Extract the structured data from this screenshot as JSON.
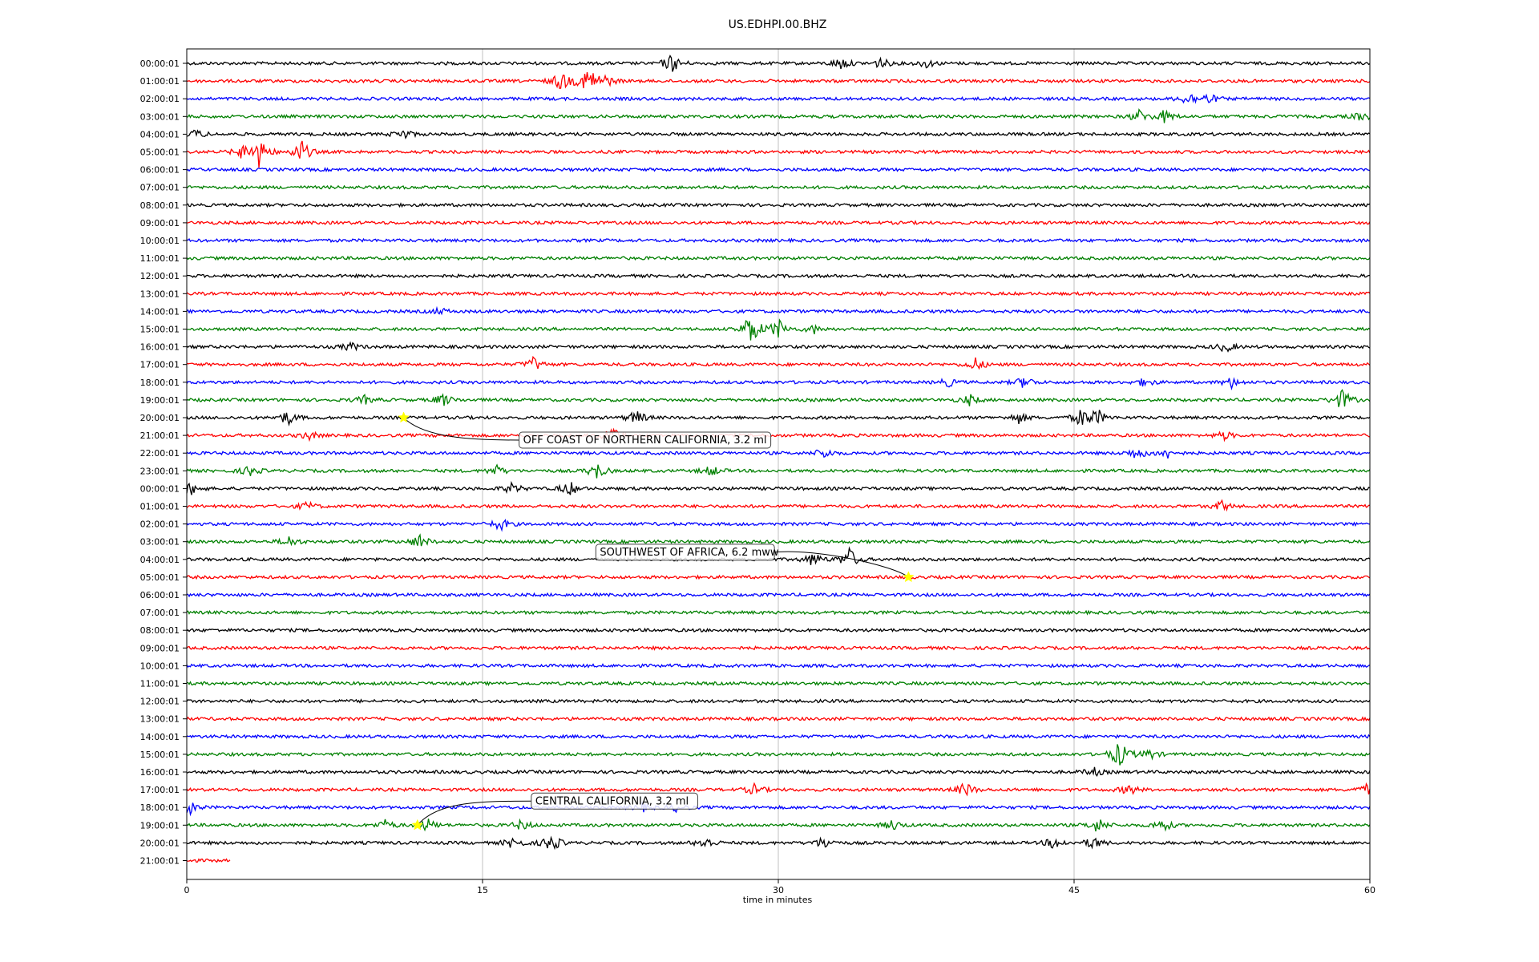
{
  "chart_data": {
    "type": "line",
    "title": "US.EDHPI.00.BHZ",
    "xlabel": "time in minutes",
    "ylabel": "",
    "xlim": [
      0,
      60
    ],
    "x_ticks": [
      "0",
      "15",
      "30",
      "45",
      "60"
    ],
    "grid": "vertical lines at 15, 30 and 45 minutes",
    "trace_colors": [
      "#000000",
      "#ff0000",
      "#0000ff",
      "#008000"
    ],
    "event_marker_color": "#ffff00",
    "row_labels": [
      "00:00:01",
      "01:00:01",
      "02:00:01",
      "03:00:01",
      "04:00:01",
      "05:00:01",
      "06:00:01",
      "07:00:01",
      "08:00:01",
      "09:00:01",
      "10:00:01",
      "11:00:01",
      "12:00:01",
      "13:00:01",
      "14:00:01",
      "15:00:01",
      "16:00:01",
      "17:00:01",
      "18:00:01",
      "19:00:01",
      "20:00:01",
      "21:00:01",
      "22:00:01",
      "23:00:01",
      "00:00:01",
      "01:00:01",
      "02:00:01",
      "03:00:01",
      "04:00:01",
      "05:00:01",
      "06:00:01",
      "07:00:01",
      "08:00:01",
      "09:00:01",
      "10:00:01",
      "11:00:01",
      "12:00:01",
      "13:00:01",
      "14:00:01",
      "15:00:01",
      "16:00:01",
      "17:00:01",
      "18:00:01",
      "19:00:01",
      "20:00:01",
      "21:00:01"
    ],
    "last_row_end_minute": 2.2,
    "bursts": [
      {
        "row": 0,
        "minute": 24.6,
        "amp": 0.9
      },
      {
        "row": 0,
        "minute": 33.2,
        "amp": 0.6
      },
      {
        "row": 0,
        "minute": 35.2,
        "amp": 0.5
      },
      {
        "row": 0,
        "minute": 37.5,
        "amp": 0.4
      },
      {
        "row": 1,
        "minute": 19.0,
        "amp": 1.0
      },
      {
        "row": 1,
        "minute": 20.4,
        "amp": 1.5
      },
      {
        "row": 1,
        "minute": 21.3,
        "amp": 0.5
      },
      {
        "row": 2,
        "minute": 50.8,
        "amp": 0.6
      },
      {
        "row": 2,
        "minute": 51.8,
        "amp": 0.5
      },
      {
        "row": 3,
        "minute": 48.3,
        "amp": 0.6
      },
      {
        "row": 3,
        "minute": 49.6,
        "amp": 0.6
      },
      {
        "row": 3,
        "minute": 59.6,
        "amp": 0.4
      },
      {
        "row": 4,
        "minute": 0.5,
        "amp": 0.4
      },
      {
        "row": 4,
        "minute": 11.0,
        "amp": 0.5
      },
      {
        "row": 5,
        "minute": 3.7,
        "amp": 1.5
      },
      {
        "row": 5,
        "minute": 2.8,
        "amp": 0.6
      },
      {
        "row": 5,
        "minute": 5.8,
        "amp": 1.2
      },
      {
        "row": 14,
        "minute": 12.8,
        "amp": 0.3
      },
      {
        "row": 15,
        "minute": 28.6,
        "amp": 1.6
      },
      {
        "row": 15,
        "minute": 30.0,
        "amp": 1.0
      },
      {
        "row": 15,
        "minute": 31.8,
        "amp": 0.4
      },
      {
        "row": 16,
        "minute": 8.3,
        "amp": 0.4
      },
      {
        "row": 16,
        "minute": 52.7,
        "amp": 0.5
      },
      {
        "row": 17,
        "minute": 17.6,
        "amp": 0.7
      },
      {
        "row": 17,
        "minute": 40.0,
        "amp": 0.6
      },
      {
        "row": 18,
        "minute": 38.6,
        "amp": 0.4
      },
      {
        "row": 18,
        "minute": 42.5,
        "amp": 0.6
      },
      {
        "row": 18,
        "minute": 48.6,
        "amp": 0.4
      },
      {
        "row": 18,
        "minute": 53.0,
        "amp": 0.5
      },
      {
        "row": 19,
        "minute": 9.0,
        "amp": 0.4
      },
      {
        "row": 19,
        "minute": 13.0,
        "amp": 0.6
      },
      {
        "row": 19,
        "minute": 39.7,
        "amp": 0.5
      },
      {
        "row": 19,
        "minute": 58.6,
        "amp": 1.0
      },
      {
        "row": 20,
        "minute": 5.1,
        "amp": 0.7
      },
      {
        "row": 20,
        "minute": 22.8,
        "amp": 0.7
      },
      {
        "row": 20,
        "minute": 42.2,
        "amp": 0.5
      },
      {
        "row": 20,
        "minute": 45.4,
        "amp": 0.9
      },
      {
        "row": 20,
        "minute": 46.2,
        "amp": 0.7
      },
      {
        "row": 21,
        "minute": 6.2,
        "amp": 0.4
      },
      {
        "row": 21,
        "minute": 21.5,
        "amp": 0.9
      },
      {
        "row": 21,
        "minute": 52.6,
        "amp": 0.4
      },
      {
        "row": 22,
        "minute": 32.3,
        "amp": 0.5
      },
      {
        "row": 22,
        "minute": 48.2,
        "amp": 0.6
      },
      {
        "row": 22,
        "minute": 49.7,
        "amp": 0.5
      },
      {
        "row": 23,
        "minute": 3.2,
        "amp": 0.5
      },
      {
        "row": 23,
        "minute": 15.7,
        "amp": 0.5
      },
      {
        "row": 23,
        "minute": 20.8,
        "amp": 0.8
      },
      {
        "row": 23,
        "minute": 26.6,
        "amp": 0.5
      },
      {
        "row": 24,
        "minute": 0.2,
        "amp": 0.6
      },
      {
        "row": 24,
        "minute": 16.5,
        "amp": 0.5
      },
      {
        "row": 24,
        "minute": 19.4,
        "amp": 0.7
      },
      {
        "row": 25,
        "minute": 6.1,
        "amp": 0.4
      },
      {
        "row": 25,
        "minute": 52.5,
        "amp": 0.5
      },
      {
        "row": 26,
        "minute": 15.9,
        "amp": 0.6
      },
      {
        "row": 27,
        "minute": 5.2,
        "amp": 0.5
      },
      {
        "row": 27,
        "minute": 11.8,
        "amp": 0.7
      },
      {
        "row": 28,
        "minute": 31.8,
        "amp": 0.7
      },
      {
        "row": 28,
        "minute": 33.6,
        "amp": 1.1
      },
      {
        "row": 39,
        "minute": 47.3,
        "amp": 1.3
      },
      {
        "row": 39,
        "minute": 48.8,
        "amp": 0.5
      },
      {
        "row": 40,
        "minute": 46.0,
        "amp": 0.4
      },
      {
        "row": 41,
        "minute": 28.8,
        "amp": 0.5
      },
      {
        "row": 41,
        "minute": 39.5,
        "amp": 0.7
      },
      {
        "row": 41,
        "minute": 47.8,
        "amp": 0.5
      },
      {
        "row": 41,
        "minute": 59.8,
        "amp": 0.5
      },
      {
        "row": 42,
        "minute": 0.1,
        "amp": 0.7
      },
      {
        "row": 42,
        "minute": 23.1,
        "amp": 0.4
      },
      {
        "row": 42,
        "minute": 24.9,
        "amp": 0.4
      },
      {
        "row": 43,
        "minute": 10.1,
        "amp": 0.5
      },
      {
        "row": 43,
        "minute": 12.2,
        "amp": 0.6
      },
      {
        "row": 43,
        "minute": 17.0,
        "amp": 0.5
      },
      {
        "row": 43,
        "minute": 35.8,
        "amp": 0.5
      },
      {
        "row": 43,
        "minute": 46.2,
        "amp": 0.7
      },
      {
        "row": 43,
        "minute": 49.5,
        "amp": 0.6
      },
      {
        "row": 44,
        "minute": 16.6,
        "amp": 0.6
      },
      {
        "row": 44,
        "minute": 18.5,
        "amp": 0.9
      },
      {
        "row": 44,
        "minute": 26.3,
        "amp": 0.6
      },
      {
        "row": 44,
        "minute": 32.3,
        "amp": 0.6
      },
      {
        "row": 44,
        "minute": 44.0,
        "amp": 0.6
      },
      {
        "row": 44,
        "minute": 46.0,
        "amp": 0.6
      }
    ],
    "events": [
      {
        "label": "OFF COAST OF NORTHERN CALIFORNIA, 3.2 ml",
        "row": 20,
        "minute": 11.0,
        "label_side": "below-right"
      },
      {
        "label": "SOUTHWEST OF AFRICA, 6.2 mww",
        "row": 29,
        "minute": 36.6,
        "label_side": "above-left"
      },
      {
        "label": "CENTRAL CALIFORNIA, 3.2 ml",
        "row": 43,
        "minute": 11.7,
        "label_side": "above-right"
      }
    ]
  }
}
